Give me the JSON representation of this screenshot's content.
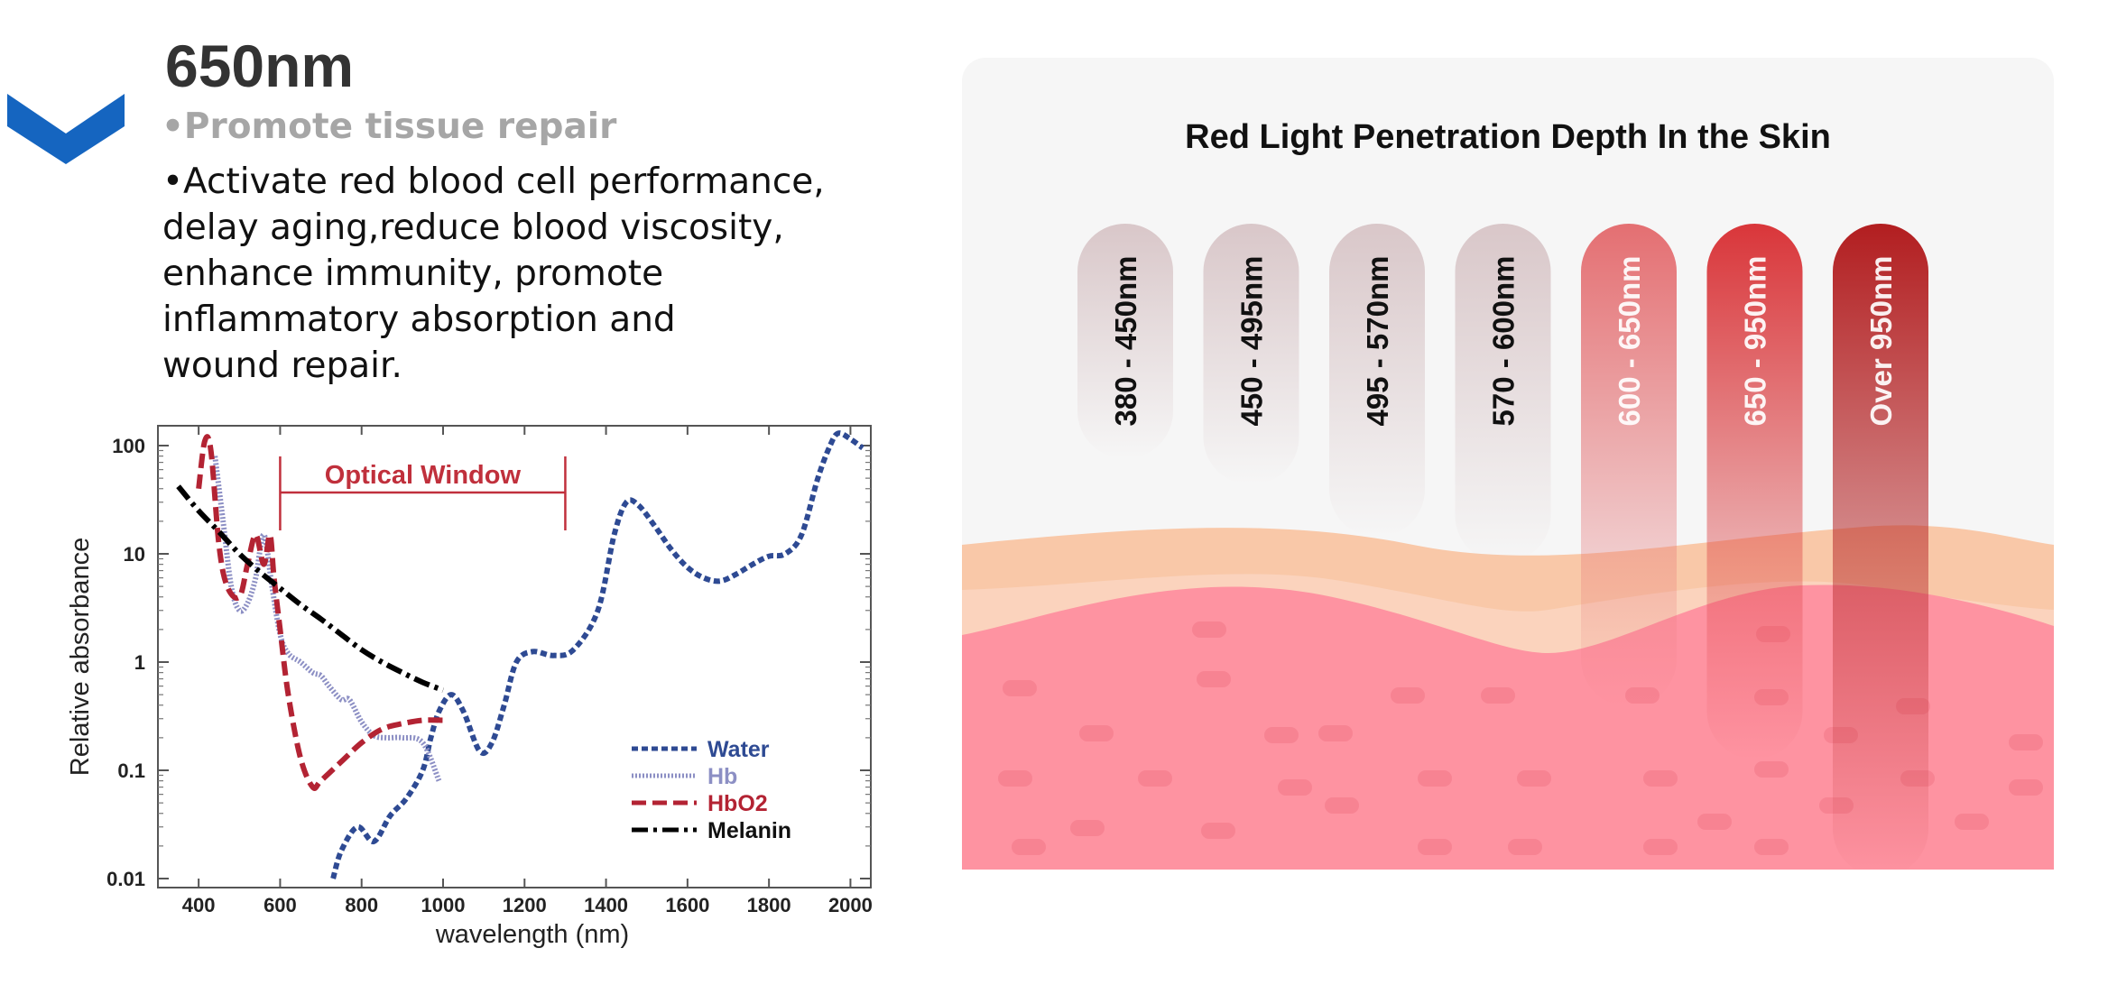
{
  "heading": {
    "wavelength": "650nm",
    "subtitle": "•Promote tissue repair",
    "description_lines": [
      "•Activate red blood cell performance,",
      "delay aging,reduce blood viscosity,",
      "enhance immunity, promote",
      "inflammatory absorption and",
      "wound repair."
    ]
  },
  "icons": {
    "chevron": "chevron-down-icon"
  },
  "colors": {
    "chevron": "#1565c0",
    "water": "#2e4a93",
    "hb": "#8c8fc4",
    "hbo2": "#b32333",
    "melanin": "#000000",
    "optical_window": "#c0303c"
  },
  "chart_data": [
    {
      "type": "line",
      "xlabel": "wavelength (nm)",
      "ylabel": "Relative absorbance",
      "x_scale": "linear",
      "y_scale": "log",
      "xlim": [
        300,
        2050
      ],
      "ylim": [
        0.01,
        130
      ],
      "x_ticks": [
        "400",
        "600",
        "800",
        "1000",
        "1200",
        "1400",
        "1600",
        "1800",
        "2000"
      ],
      "y_ticks": [
        "100",
        "10",
        "1",
        "0.1",
        "0.01"
      ],
      "grid": false,
      "legend_position": "bottom-right",
      "annotation": {
        "label": "Optical Window",
        "x_range": [
          600,
          1300
        ]
      },
      "series": [
        {
          "name": "Water",
          "style": "dashed",
          "x": [
            730,
            750,
            790,
            830,
            870,
            910,
            950,
            970,
            990,
            1020,
            1050,
            1090,
            1120,
            1150,
            1180,
            1220,
            1270,
            1320,
            1380,
            1420,
            1450,
            1480,
            1520,
            1560,
            1600,
            1640,
            1680,
            1720,
            1760,
            1800,
            1840,
            1880,
            1920,
            1950,
            1970,
            2000,
            2030
          ],
          "y": [
            0.01,
            0.018,
            0.03,
            0.022,
            0.038,
            0.055,
            0.1,
            0.2,
            0.35,
            0.5,
            0.35,
            0.15,
            0.18,
            0.4,
            1.0,
            1.25,
            1.15,
            1.3,
            3.0,
            15,
            30,
            28,
            18,
            11,
            7.5,
            6,
            5.6,
            6.5,
            8,
            9.5,
            10,
            15,
            50,
            100,
            130,
            115,
            95
          ]
        },
        {
          "name": "Hb",
          "style": "dotted",
          "x": [
            440,
            460,
            480,
            500,
            520,
            540,
            560,
            580,
            600,
            620,
            650,
            680,
            700,
            720,
            750,
            770,
            800,
            830,
            860,
            900,
            950,
            990
          ],
          "y": [
            80,
            20,
            5,
            3,
            3.5,
            6,
            15,
            5,
            1.8,
            1.2,
            1.0,
            0.8,
            0.75,
            0.6,
            0.45,
            0.45,
            0.28,
            0.21,
            0.2,
            0.2,
            0.18,
            0.08
          ]
        },
        {
          "name": "HbO2",
          "style": "dashed",
          "x": [
            400,
            415,
            430,
            450,
            470,
            500,
            520,
            540,
            560,
            575,
            585,
            600,
            620,
            650,
            680,
            700,
            750,
            800,
            850,
            900,
            950,
            1000
          ],
          "y": [
            40,
            110,
            90,
            12,
            5,
            4,
            8,
            15,
            8,
            15,
            6,
            2,
            0.5,
            0.13,
            0.07,
            0.08,
            0.12,
            0.18,
            0.24,
            0.27,
            0.29,
            0.29
          ]
        },
        {
          "name": "Melanin",
          "style": "dashdot",
          "x": [
            350,
            400,
            450,
            500,
            550,
            600,
            650,
            700,
            750,
            800,
            850,
            900,
            950,
            1000
          ],
          "y": [
            42,
            25,
            16,
            10,
            6.8,
            4.8,
            3.4,
            2.5,
            1.8,
            1.3,
            1.0,
            0.8,
            0.65,
            0.55
          ]
        }
      ]
    },
    {
      "type": "bar",
      "title": "Red Light Penetration Depth In the Skin",
      "categories": [
        "380 - 450nm",
        "450 - 495nm",
        "495 - 570nm",
        "570 - 600nm",
        "600 - 650nm",
        "650 - 950nm",
        "Over 950nm"
      ],
      "bar_colors": [
        "#d9c7c9",
        "#d9c7c9",
        "#d9c7c9",
        "#d9c7c9",
        "#e46f72",
        "#d9363a",
        "#b21e20"
      ],
      "relative_depth": [
        0.36,
        0.4,
        0.48,
        0.52,
        0.74,
        0.82,
        1.0
      ]
    }
  ]
}
